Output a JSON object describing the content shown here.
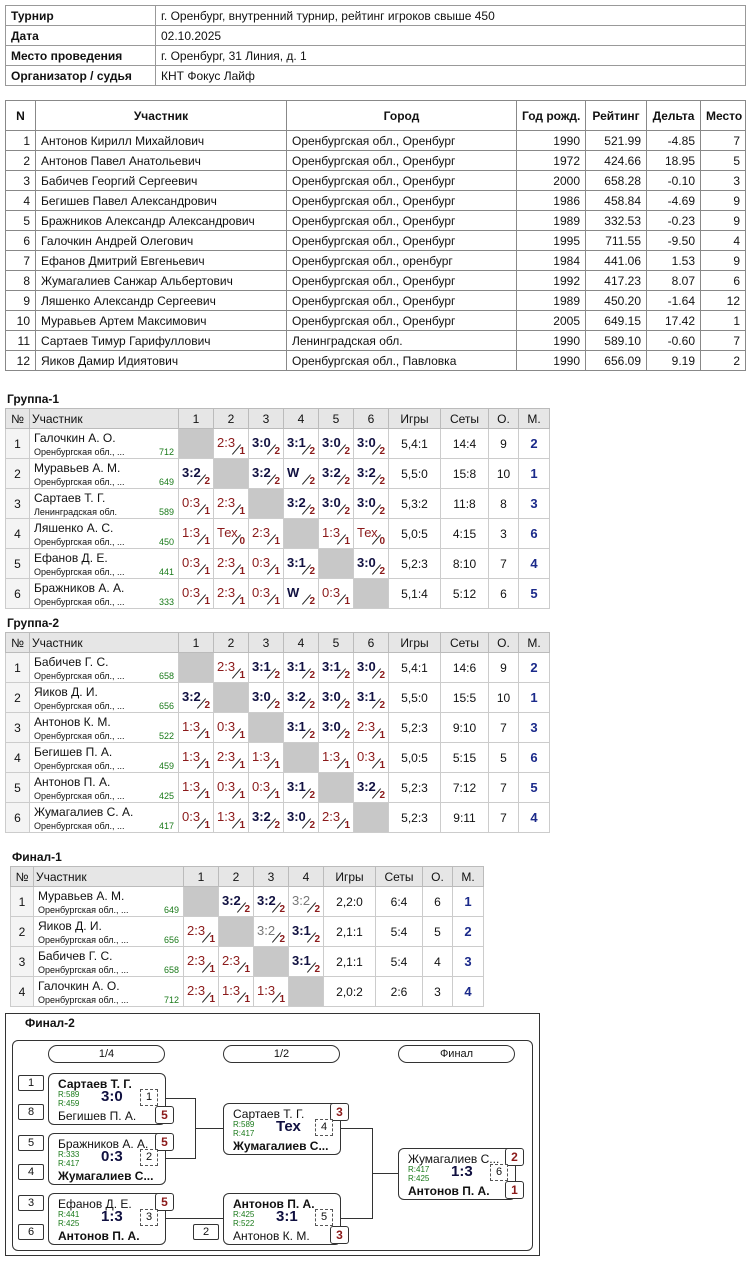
{
  "info": [
    {
      "label": "Турнир",
      "value": "г. Оренбург, внутренний турнир, рейтинг игроков свыше 450"
    },
    {
      "label": "Дата",
      "value": "02.10.2025"
    },
    {
      "label": "Место проведения",
      "value": "г. Оренбург, 31 Линия, д. 1"
    },
    {
      "label": "Организатор / судья",
      "value": "КНТ Фокус Лайф"
    }
  ],
  "participants": {
    "columns": [
      "N",
      "Участник",
      "Город",
      "Год рожд.",
      "Рейтинг",
      "Дельта",
      "Место"
    ],
    "rows": [
      [
        "1",
        "Антонов Кирилл Михайлович",
        "Оренбургская обл., Оренбург",
        "1990",
        "521.99",
        "-4.85",
        "7"
      ],
      [
        "2",
        "Антонов Павел Анатольевич",
        "Оренбургская обл., Оренбург",
        "1972",
        "424.66",
        "18.95",
        "5"
      ],
      [
        "3",
        "Бабичев Георгий Сергеевич",
        "Оренбургская обл., Оренбург",
        "2000",
        "658.28",
        "-0.10",
        "3"
      ],
      [
        "4",
        "Бегишев Павел Александрович",
        "Оренбургская обл., Оренбург",
        "1986",
        "458.84",
        "-4.69",
        "9"
      ],
      [
        "5",
        "Бражников Александр Александрович",
        "Оренбургская обл., Оренбург",
        "1989",
        "332.53",
        "-0.23",
        "9"
      ],
      [
        "6",
        "Галочкин Андрей Олегович",
        "Оренбургская обл., Оренбург",
        "1995",
        "711.55",
        "-9.50",
        "4"
      ],
      [
        "7",
        "Ефанов Дмитрий Евгеньевич",
        "Оренбургская обл., оренбург",
        "1984",
        "441.06",
        "1.53",
        "9"
      ],
      [
        "8",
        "Жумагалиев Санжар Альбертович",
        "Оренбургская обл., Оренбург",
        "1992",
        "417.23",
        "8.07",
        "6"
      ],
      [
        "9",
        "Ляшенко Александр Сергеевич",
        "Оренбургская обл., Оренбург",
        "1989",
        "450.20",
        "-1.64",
        "12"
      ],
      [
        "10",
        "Муравьев Артем Максимович",
        "Оренбургская обл., Оренбург",
        "2005",
        "649.15",
        "17.42",
        "1"
      ],
      [
        "11",
        "Сартаев Тимур Гарифуллович",
        "Ленинградская обл.",
        "1990",
        "589.10",
        "-0.60",
        "7"
      ],
      [
        "12",
        "Яиков Дамир Идиятович",
        "Оренбургская обл., Павловка",
        "1990",
        "656.09",
        "9.19",
        "2"
      ]
    ]
  },
  "groups": [
    {
      "title": "Группа-1",
      "columns": [
        "№",
        "Участник",
        "1",
        "2",
        "3",
        "4",
        "5",
        "6",
        "Игры",
        "Сеты",
        "О.",
        "М."
      ],
      "rows": [
        {
          "n": "1",
          "name": "Галочкин А. О.",
          "city": "Оренбургская обл., ...",
          "rating": "712",
          "cells": [
            null,
            {
              "s": "2:3",
              "n": "1"
            },
            {
              "s": "3:0",
              "n": "2"
            },
            {
              "s": "3:1",
              "n": "2"
            },
            {
              "s": "3:0",
              "n": "2"
            },
            {
              "s": "3:0",
              "n": "2"
            }
          ],
          "games": "5,4:1",
          "sets": "14:4",
          "points": "9",
          "place": "2"
        },
        {
          "n": "2",
          "name": "Муравьев А. М.",
          "city": "Оренбургская обл., ...",
          "rating": "649",
          "cells": [
            {
              "s": "3:2",
              "n": "2"
            },
            null,
            {
              "s": "3:2",
              "n": "2"
            },
            {
              "s": "W",
              "n": "2"
            },
            {
              "s": "3:2",
              "n": "2"
            },
            {
              "s": "3:2",
              "n": "2"
            }
          ],
          "games": "5,5:0",
          "sets": "15:8",
          "points": "10",
          "place": "1"
        },
        {
          "n": "3",
          "name": "Сартаев Т. Г.",
          "city": "Ленинградская обл.",
          "rating": "589",
          "cells": [
            {
              "s": "0:3",
              "n": "1"
            },
            {
              "s": "2:3",
              "n": "1"
            },
            null,
            {
              "s": "3:2",
              "n": "2"
            },
            {
              "s": "3:0",
              "n": "2"
            },
            {
              "s": "3:0",
              "n": "2"
            }
          ],
          "games": "5,3:2",
          "sets": "11:8",
          "points": "8",
          "place": "3"
        },
        {
          "n": "4",
          "name": "Ляшенко А. С.",
          "city": "Оренбургская обл., ...",
          "rating": "450",
          "cells": [
            {
              "s": "1:3",
              "n": "1"
            },
            {
              "s": "Тех",
              "n": "0"
            },
            {
              "s": "2:3",
              "n": "1"
            },
            null,
            {
              "s": "1:3",
              "n": "1"
            },
            {
              "s": "Тех",
              "n": "0"
            }
          ],
          "games": "5,0:5",
          "sets": "4:15",
          "points": "3",
          "place": "6"
        },
        {
          "n": "5",
          "name": "Ефанов Д. Е.",
          "city": "Оренбургская обл., ...",
          "rating": "441",
          "cells": [
            {
              "s": "0:3",
              "n": "1"
            },
            {
              "s": "2:3",
              "n": "1"
            },
            {
              "s": "0:3",
              "n": "1"
            },
            {
              "s": "3:1",
              "n": "2"
            },
            null,
            {
              "s": "3:0",
              "n": "2"
            }
          ],
          "games": "5,2:3",
          "sets": "8:10",
          "points": "7",
          "place": "4"
        },
        {
          "n": "6",
          "name": "Бражников А. А.",
          "city": "Оренбургская обл., ...",
          "rating": "333",
          "cells": [
            {
              "s": "0:3",
              "n": "1"
            },
            {
              "s": "2:3",
              "n": "1"
            },
            {
              "s": "0:3",
              "n": "1"
            },
            {
              "s": "W",
              "n": "2"
            },
            {
              "s": "0:3",
              "n": "1"
            },
            null
          ],
          "games": "5,1:4",
          "sets": "5:12",
          "points": "6",
          "place": "5"
        }
      ]
    },
    {
      "title": "Группа-2",
      "columns": [
        "№",
        "Участник",
        "1",
        "2",
        "3",
        "4",
        "5",
        "6",
        "Игры",
        "Сеты",
        "О.",
        "М."
      ],
      "rows": [
        {
          "n": "1",
          "name": "Бабичев Г. С.",
          "city": "Оренбургская обл., ...",
          "rating": "658",
          "cells": [
            null,
            {
              "s": "2:3",
              "n": "1"
            },
            {
              "s": "3:1",
              "n": "2"
            },
            {
              "s": "3:1",
              "n": "2"
            },
            {
              "s": "3:1",
              "n": "2"
            },
            {
              "s": "3:0",
              "n": "2"
            }
          ],
          "games": "5,4:1",
          "sets": "14:6",
          "points": "9",
          "place": "2"
        },
        {
          "n": "2",
          "name": "Яиков Д. И.",
          "city": "Оренбургская обл., ...",
          "rating": "656",
          "cells": [
            {
              "s": "3:2",
              "n": "2"
            },
            null,
            {
              "s": "3:0",
              "n": "2"
            },
            {
              "s": "3:2",
              "n": "2"
            },
            {
              "s": "3:0",
              "n": "2"
            },
            {
              "s": "3:1",
              "n": "2"
            }
          ],
          "games": "5,5:0",
          "sets": "15:5",
          "points": "10",
          "place": "1"
        },
        {
          "n": "3",
          "name": "Антонов К. М.",
          "city": "Оренбургская обл., ...",
          "rating": "522",
          "cells": [
            {
              "s": "1:3",
              "n": "1"
            },
            {
              "s": "0:3",
              "n": "1"
            },
            null,
            {
              "s": "3:1",
              "n": "2"
            },
            {
              "s": "3:0",
              "n": "2"
            },
            {
              "s": "2:3",
              "n": "1"
            }
          ],
          "games": "5,2:3",
          "sets": "9:10",
          "points": "7",
          "place": "3"
        },
        {
          "n": "4",
          "name": "Бегишев П. А.",
          "city": "Оренбургская обл., ...",
          "rating": "459",
          "cells": [
            {
              "s": "1:3",
              "n": "1"
            },
            {
              "s": "2:3",
              "n": "1"
            },
            {
              "s": "1:3",
              "n": "1"
            },
            null,
            {
              "s": "1:3",
              "n": "1"
            },
            {
              "s": "0:3",
              "n": "1"
            }
          ],
          "games": "5,0:5",
          "sets": "5:15",
          "points": "5",
          "place": "6"
        },
        {
          "n": "5",
          "name": "Антонов П. А.",
          "city": "Оренбургская обл., ...",
          "rating": "425",
          "cells": [
            {
              "s": "1:3",
              "n": "1"
            },
            {
              "s": "0:3",
              "n": "1"
            },
            {
              "s": "0:3",
              "n": "1"
            },
            {
              "s": "3:1",
              "n": "2"
            },
            null,
            {
              "s": "3:2",
              "n": "2"
            }
          ],
          "games": "5,2:3",
          "sets": "7:12",
          "points": "7",
          "place": "5"
        },
        {
          "n": "6",
          "name": "Жумагалиев С. А.",
          "city": "Оренбургская обл., ...",
          "rating": "417",
          "cells": [
            {
              "s": "0:3",
              "n": "1"
            },
            {
              "s": "1:3",
              "n": "1"
            },
            {
              "s": "3:2",
              "n": "2"
            },
            {
              "s": "3:0",
              "n": "2"
            },
            {
              "s": "2:3",
              "n": "1"
            },
            null
          ],
          "games": "5,2:3",
          "sets": "9:11",
          "points": "7",
          "place": "4"
        }
      ]
    },
    {
      "title": "Финал-1",
      "columns": [
        "№",
        "Участник",
        "1",
        "2",
        "3",
        "4",
        "Игры",
        "Сеты",
        "О.",
        "М."
      ],
      "rows": [
        {
          "n": "1",
          "name": "Муравьев А. М.",
          "city": "Оренбургская обл., ...",
          "rating": "649",
          "cells": [
            null,
            {
              "s": "3:2",
              "n": "2"
            },
            {
              "s": "3:2",
              "n": "2"
            },
            {
              "s": "3:2",
              "n": "2",
              "dim": true
            }
          ],
          "games": "2,2:0",
          "sets": "6:4",
          "points": "6",
          "place": "1"
        },
        {
          "n": "2",
          "name": "Яиков Д. И.",
          "city": "Оренбургская обл., ...",
          "rating": "656",
          "cells": [
            {
              "s": "2:3",
              "n": "1"
            },
            null,
            {
              "s": "3:2",
              "n": "2",
              "dim": true
            },
            {
              "s": "3:1",
              "n": "2"
            }
          ],
          "games": "2,1:1",
          "sets": "5:4",
          "points": "5",
          "place": "2"
        },
        {
          "n": "3",
          "name": "Бабичев Г. С.",
          "city": "Оренбургская обл., ...",
          "rating": "658",
          "cells": [
            {
              "s": "2:3",
              "n": "1"
            },
            {
              "s": "2:3",
              "n": "1"
            },
            null,
            {
              "s": "3:1",
              "n": "2"
            }
          ],
          "games": "2,1:1",
          "sets": "5:4",
          "points": "4",
          "place": "3"
        },
        {
          "n": "4",
          "name": "Галочкин А. О.",
          "city": "Оренбургская обл., ...",
          "rating": "712",
          "cells": [
            {
              "s": "2:3",
              "n": "1"
            },
            {
              "s": "1:3",
              "n": "1"
            },
            {
              "s": "1:3",
              "n": "1"
            },
            null
          ],
          "games": "2,0:2",
          "sets": "2:6",
          "points": "3",
          "place": "4"
        }
      ]
    }
  ],
  "final2": {
    "title": "Финал-2",
    "stages": [
      "1/4",
      "1/2",
      "Финал"
    ],
    "matches": [
      {
        "no": "1",
        "score": "3:0",
        "players": [
          {
            "seed": "1",
            "name": "Сартаев Т. Г.",
            "rating": "R:589",
            "winner": true
          },
          {
            "seed": "8",
            "name": "Бегишев П. А.",
            "rating": "R:459",
            "place": "5"
          }
        ]
      },
      {
        "no": "2",
        "score": "0:3",
        "players": [
          {
            "seed": "5",
            "name": "Бражников А. А.",
            "rating": "R:333",
            "place": "5"
          },
          {
            "seed": "4",
            "name": "Жумагалиев С...",
            "rating": "R:417",
            "winner": true
          }
        ]
      },
      {
        "no": "3",
        "score": "1:3",
        "players": [
          {
            "seed": "3",
            "name": "Ефанов Д. Е.",
            "rating": "R:441",
            "place": "5"
          },
          {
            "seed": "6",
            "name": "Антонов П. А.",
            "rating": "R:425",
            "winner": true
          }
        ]
      },
      {
        "no": "4",
        "score": "Тех",
        "players": [
          {
            "name": "Сартаев Т. Г.",
            "rating": "R:589",
            "place": "3"
          },
          {
            "name": "Жумагалиев С...",
            "rating": "R:417",
            "winner": true
          }
        ]
      },
      {
        "no": "5",
        "score": "3:1",
        "players": [
          {
            "name": "Антонов П. А.",
            "rating": "R:425",
            "winner": true
          },
          {
            "seed": "2",
            "name": "Антонов К. М.",
            "rating": "R:522",
            "place": "3"
          }
        ]
      },
      {
        "no": "6",
        "score": "1:3",
        "players": [
          {
            "name": "Жумагалиев С...",
            "rating": "R:417",
            "place": "2"
          },
          {
            "name": "Антонов П. А.",
            "rating": "R:425",
            "winner": true,
            "place": "1"
          }
        ]
      }
    ]
  }
}
